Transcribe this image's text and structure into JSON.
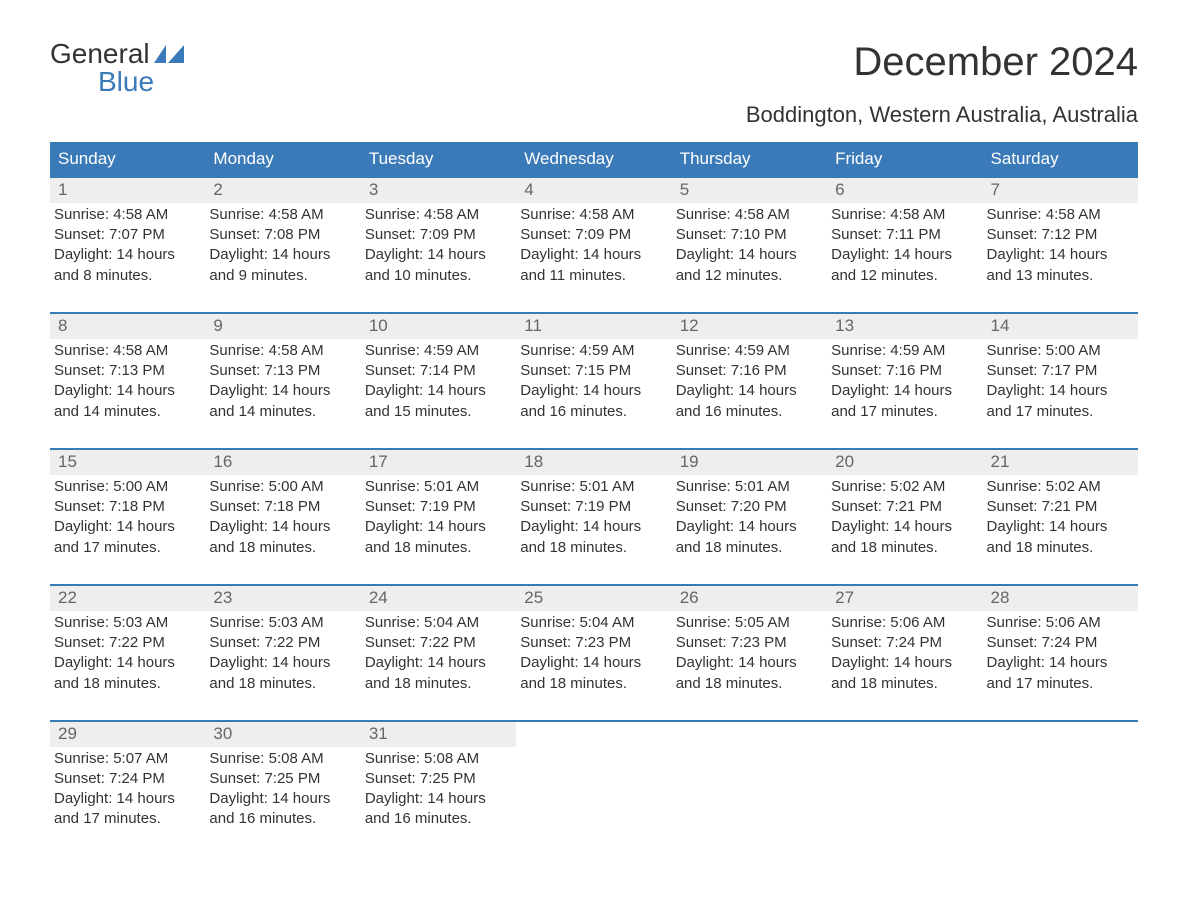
{
  "logo": {
    "top": "General",
    "bottom": "Blue"
  },
  "title": "December 2024",
  "location": "Boddington, Western Australia, Australia",
  "colors": {
    "header_bg": "#3b7ab8",
    "header_text": "#ffffff",
    "daynum_bg": "#eeeeee",
    "daynum_text": "#666666",
    "body_text": "#333333",
    "accent": "#3b7ab8",
    "page_bg": "#ffffff"
  },
  "dow": [
    "Sunday",
    "Monday",
    "Tuesday",
    "Wednesday",
    "Thursday",
    "Friday",
    "Saturday"
  ],
  "weeks": [
    [
      {
        "day": "1",
        "sunrise": "Sunrise: 4:58 AM",
        "sunset": "Sunset: 7:07 PM",
        "daylight1": "Daylight: 14 hours",
        "daylight2": "and 8 minutes."
      },
      {
        "day": "2",
        "sunrise": "Sunrise: 4:58 AM",
        "sunset": "Sunset: 7:08 PM",
        "daylight1": "Daylight: 14 hours",
        "daylight2": "and 9 minutes."
      },
      {
        "day": "3",
        "sunrise": "Sunrise: 4:58 AM",
        "sunset": "Sunset: 7:09 PM",
        "daylight1": "Daylight: 14 hours",
        "daylight2": "and 10 minutes."
      },
      {
        "day": "4",
        "sunrise": "Sunrise: 4:58 AM",
        "sunset": "Sunset: 7:09 PM",
        "daylight1": "Daylight: 14 hours",
        "daylight2": "and 11 minutes."
      },
      {
        "day": "5",
        "sunrise": "Sunrise: 4:58 AM",
        "sunset": "Sunset: 7:10 PM",
        "daylight1": "Daylight: 14 hours",
        "daylight2": "and 12 minutes."
      },
      {
        "day": "6",
        "sunrise": "Sunrise: 4:58 AM",
        "sunset": "Sunset: 7:11 PM",
        "daylight1": "Daylight: 14 hours",
        "daylight2": "and 12 minutes."
      },
      {
        "day": "7",
        "sunrise": "Sunrise: 4:58 AM",
        "sunset": "Sunset: 7:12 PM",
        "daylight1": "Daylight: 14 hours",
        "daylight2": "and 13 minutes."
      }
    ],
    [
      {
        "day": "8",
        "sunrise": "Sunrise: 4:58 AM",
        "sunset": "Sunset: 7:13 PM",
        "daylight1": "Daylight: 14 hours",
        "daylight2": "and 14 minutes."
      },
      {
        "day": "9",
        "sunrise": "Sunrise: 4:58 AM",
        "sunset": "Sunset: 7:13 PM",
        "daylight1": "Daylight: 14 hours",
        "daylight2": "and 14 minutes."
      },
      {
        "day": "10",
        "sunrise": "Sunrise: 4:59 AM",
        "sunset": "Sunset: 7:14 PM",
        "daylight1": "Daylight: 14 hours",
        "daylight2": "and 15 minutes."
      },
      {
        "day": "11",
        "sunrise": "Sunrise: 4:59 AM",
        "sunset": "Sunset: 7:15 PM",
        "daylight1": "Daylight: 14 hours",
        "daylight2": "and 16 minutes."
      },
      {
        "day": "12",
        "sunrise": "Sunrise: 4:59 AM",
        "sunset": "Sunset: 7:16 PM",
        "daylight1": "Daylight: 14 hours",
        "daylight2": "and 16 minutes."
      },
      {
        "day": "13",
        "sunrise": "Sunrise: 4:59 AM",
        "sunset": "Sunset: 7:16 PM",
        "daylight1": "Daylight: 14 hours",
        "daylight2": "and 17 minutes."
      },
      {
        "day": "14",
        "sunrise": "Sunrise: 5:00 AM",
        "sunset": "Sunset: 7:17 PM",
        "daylight1": "Daylight: 14 hours",
        "daylight2": "and 17 minutes."
      }
    ],
    [
      {
        "day": "15",
        "sunrise": "Sunrise: 5:00 AM",
        "sunset": "Sunset: 7:18 PM",
        "daylight1": "Daylight: 14 hours",
        "daylight2": "and 17 minutes."
      },
      {
        "day": "16",
        "sunrise": "Sunrise: 5:00 AM",
        "sunset": "Sunset: 7:18 PM",
        "daylight1": "Daylight: 14 hours",
        "daylight2": "and 18 minutes."
      },
      {
        "day": "17",
        "sunrise": "Sunrise: 5:01 AM",
        "sunset": "Sunset: 7:19 PM",
        "daylight1": "Daylight: 14 hours",
        "daylight2": "and 18 minutes."
      },
      {
        "day": "18",
        "sunrise": "Sunrise: 5:01 AM",
        "sunset": "Sunset: 7:19 PM",
        "daylight1": "Daylight: 14 hours",
        "daylight2": "and 18 minutes."
      },
      {
        "day": "19",
        "sunrise": "Sunrise: 5:01 AM",
        "sunset": "Sunset: 7:20 PM",
        "daylight1": "Daylight: 14 hours",
        "daylight2": "and 18 minutes."
      },
      {
        "day": "20",
        "sunrise": "Sunrise: 5:02 AM",
        "sunset": "Sunset: 7:21 PM",
        "daylight1": "Daylight: 14 hours",
        "daylight2": "and 18 minutes."
      },
      {
        "day": "21",
        "sunrise": "Sunrise: 5:02 AM",
        "sunset": "Sunset: 7:21 PM",
        "daylight1": "Daylight: 14 hours",
        "daylight2": "and 18 minutes."
      }
    ],
    [
      {
        "day": "22",
        "sunrise": "Sunrise: 5:03 AM",
        "sunset": "Sunset: 7:22 PM",
        "daylight1": "Daylight: 14 hours",
        "daylight2": "and 18 minutes."
      },
      {
        "day": "23",
        "sunrise": "Sunrise: 5:03 AM",
        "sunset": "Sunset: 7:22 PM",
        "daylight1": "Daylight: 14 hours",
        "daylight2": "and 18 minutes."
      },
      {
        "day": "24",
        "sunrise": "Sunrise: 5:04 AM",
        "sunset": "Sunset: 7:22 PM",
        "daylight1": "Daylight: 14 hours",
        "daylight2": "and 18 minutes."
      },
      {
        "day": "25",
        "sunrise": "Sunrise: 5:04 AM",
        "sunset": "Sunset: 7:23 PM",
        "daylight1": "Daylight: 14 hours",
        "daylight2": "and 18 minutes."
      },
      {
        "day": "26",
        "sunrise": "Sunrise: 5:05 AM",
        "sunset": "Sunset: 7:23 PM",
        "daylight1": "Daylight: 14 hours",
        "daylight2": "and 18 minutes."
      },
      {
        "day": "27",
        "sunrise": "Sunrise: 5:06 AM",
        "sunset": "Sunset: 7:24 PM",
        "daylight1": "Daylight: 14 hours",
        "daylight2": "and 18 minutes."
      },
      {
        "day": "28",
        "sunrise": "Sunrise: 5:06 AM",
        "sunset": "Sunset: 7:24 PM",
        "daylight1": "Daylight: 14 hours",
        "daylight2": "and 17 minutes."
      }
    ],
    [
      {
        "day": "29",
        "sunrise": "Sunrise: 5:07 AM",
        "sunset": "Sunset: 7:24 PM",
        "daylight1": "Daylight: 14 hours",
        "daylight2": "and 17 minutes."
      },
      {
        "day": "30",
        "sunrise": "Sunrise: 5:08 AM",
        "sunset": "Sunset: 7:25 PM",
        "daylight1": "Daylight: 14 hours",
        "daylight2": "and 16 minutes."
      },
      {
        "day": "31",
        "sunrise": "Sunrise: 5:08 AM",
        "sunset": "Sunset: 7:25 PM",
        "daylight1": "Daylight: 14 hours",
        "daylight2": "and 16 minutes."
      },
      null,
      null,
      null,
      null
    ]
  ]
}
